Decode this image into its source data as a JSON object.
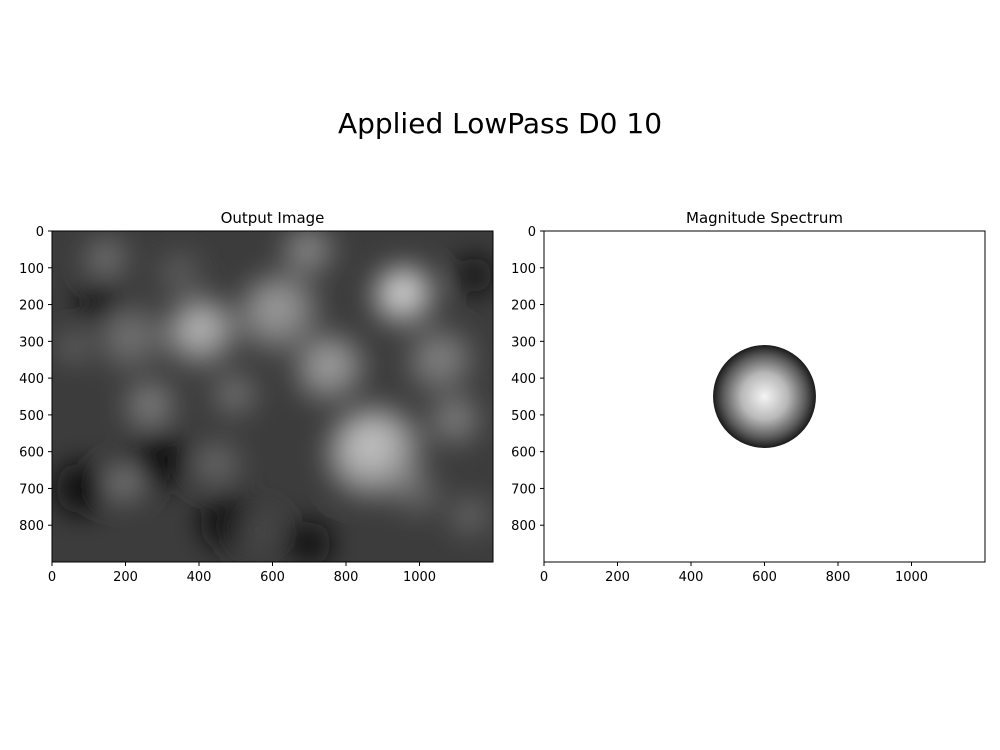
{
  "figure": {
    "title": "Applied LowPass D0 10"
  },
  "chart_data": [
    {
      "type": "image",
      "title": "Output Image",
      "xlim": [
        0,
        1200
      ],
      "ylim": [
        900,
        0
      ],
      "xticks": [
        0,
        200,
        400,
        600,
        800,
        1000
      ],
      "yticks": [
        0,
        100,
        200,
        300,
        400,
        500,
        600,
        700,
        800
      ],
      "colormap": "gray",
      "content": "blurred grayscale photo (low-pass filtered)",
      "bright_blobs": [
        {
          "x": 960,
          "y": 180,
          "r": 85,
          "v": 0.93
        },
        {
          "x": 880,
          "y": 610,
          "r": 130,
          "v": 0.82
        },
        {
          "x": 410,
          "y": 280,
          "r": 95,
          "v": 0.78
        },
        {
          "x": 620,
          "y": 230,
          "r": 110,
          "v": 0.65
        },
        {
          "x": 760,
          "y": 380,
          "r": 95,
          "v": 0.68
        },
        {
          "x": 1060,
          "y": 360,
          "r": 90,
          "v": 0.55
        },
        {
          "x": 220,
          "y": 300,
          "r": 90,
          "v": 0.48
        },
        {
          "x": 270,
          "y": 480,
          "r": 70,
          "v": 0.55
        },
        {
          "x": 500,
          "y": 450,
          "r": 60,
          "v": 0.5
        },
        {
          "x": 150,
          "y": 80,
          "r": 60,
          "v": 0.5
        },
        {
          "x": 200,
          "y": 690,
          "r": 55,
          "v": 0.55
        },
        {
          "x": 450,
          "y": 640,
          "r": 65,
          "v": 0.45
        },
        {
          "x": 1100,
          "y": 520,
          "r": 70,
          "v": 0.55
        },
        {
          "x": 1140,
          "y": 780,
          "r": 55,
          "v": 0.45
        },
        {
          "x": 60,
          "y": 320,
          "r": 40,
          "v": 0.5
        },
        {
          "x": 350,
          "y": 120,
          "r": 60,
          "v": 0.4
        },
        {
          "x": 700,
          "y": 60,
          "r": 70,
          "v": 0.6
        },
        {
          "x": 560,
          "y": 820,
          "r": 70,
          "v": 0.3
        },
        {
          "x": 1000,
          "y": 720,
          "r": 60,
          "v": 0.45
        }
      ],
      "dark_blobs": [
        {
          "x": 290,
          "y": 620,
          "r": 80
        },
        {
          "x": 480,
          "y": 790,
          "r": 75
        },
        {
          "x": 80,
          "y": 700,
          "r": 70
        },
        {
          "x": 130,
          "y": 190,
          "r": 55
        },
        {
          "x": 1150,
          "y": 120,
          "r": 50
        },
        {
          "x": 700,
          "y": 850,
          "r": 60
        }
      ]
    },
    {
      "type": "image",
      "title": "Magnitude Spectrum",
      "xlim": [
        0,
        1200
      ],
      "ylim": [
        900,
        0
      ],
      "xticks": [
        0,
        200,
        400,
        600,
        800,
        1000
      ],
      "yticks": [
        0,
        100,
        200,
        300,
        400,
        500,
        600,
        700,
        800
      ],
      "colormap": "gray",
      "content": "filtered spectrum: bright disk at center, white elsewhere",
      "disk": {
        "cx": 600,
        "cy": 450,
        "r": 140
      }
    }
  ]
}
